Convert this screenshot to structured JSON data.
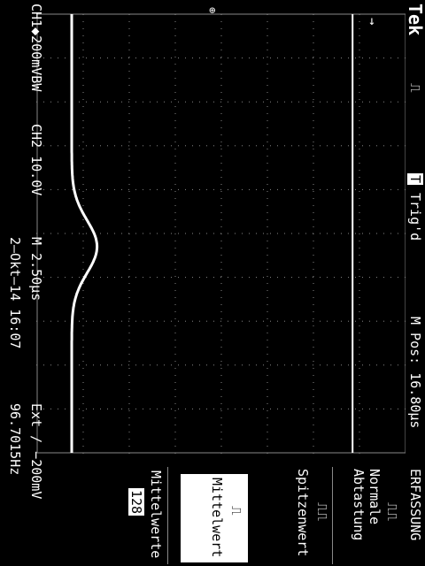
{
  "header": {
    "brand": "Tek",
    "run_icon": "pulse-run-icon",
    "trigger_badge": "T",
    "trigger_status": "Trig'd",
    "horizontal_position": "M Pos: 16.80µs"
  },
  "footer": {
    "channel1": "CH1◆200mVB",
    "bw_marker": "W",
    "channel2": "CH2  10.0V",
    "timebase": "M 2.50µs",
    "trigger_info": "Ext ∕ −200mV",
    "date": "2–Okt–14 16:07",
    "frequency": "96.7015Hz"
  },
  "menu": {
    "title": "ERFASSUNG",
    "items": [
      {
        "label": "Normale Abtastung",
        "selected": false
      },
      {
        "label": "Spitzenwert",
        "selected": false
      },
      {
        "label": "Mittelwert",
        "selected": true
      },
      {
        "label": "Mittelwerte",
        "value": "128",
        "selected": false
      }
    ]
  },
  "trace": {
    "ch2_level_div": 2.85,
    "ch1_baseline_div": -3.25,
    "ch1_peak_div": -2.7
  }
}
